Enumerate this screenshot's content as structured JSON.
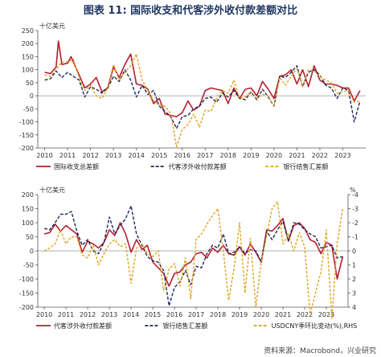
{
  "figure": {
    "title": "图表 11: 国际收支和代客涉外收付款差额对比",
    "source": "资料来源：Macrobond，兴业研究"
  },
  "colors": {
    "title": "#1f3864",
    "red": "#b41f2e",
    "navy": "#1f2a5a",
    "gold": "#e0a21a",
    "axis": "#555555",
    "zero": "#999999"
  },
  "chart_data": [
    {
      "type": "line",
      "ylabel": "十亿美元",
      "ylim": [
        -200,
        250
      ],
      "yticks": [
        250,
        200,
        150,
        100,
        50,
        0,
        -50,
        -100,
        -150,
        -200
      ],
      "xlim": [
        2009.7,
        2024.0
      ],
      "xticks": [
        "2010",
        "2011",
        "2012",
        "2013",
        "2014",
        "2015",
        "2016",
        "2017",
        "2018",
        "2019",
        "2020",
        "2021",
        "2022",
        "2023"
      ],
      "legend_position": "bottom",
      "series": [
        {
          "name": "国际收支总差额",
          "style": "solid",
          "color": "#b41f2e",
          "x": [
            2010.0,
            2010.25,
            2010.5,
            2010.6,
            2010.75,
            2011.0,
            2011.15,
            2011.3,
            2011.5,
            2011.75,
            2012.0,
            2012.25,
            2012.5,
            2012.75,
            2013.0,
            2013.25,
            2013.5,
            2013.75,
            2014.0,
            2014.25,
            2014.5,
            2014.75,
            2015.0,
            2015.25,
            2015.5,
            2015.75,
            2016.0,
            2016.25,
            2016.5,
            2016.75,
            2017.0,
            2017.25,
            2017.5,
            2017.75,
            2018.0,
            2018.25,
            2018.5,
            2018.75,
            2019.0,
            2019.25,
            2019.5,
            2019.75,
            2020.0,
            2020.25,
            2020.5,
            2020.75,
            2021.0,
            2021.25,
            2021.5,
            2021.75,
            2022.0,
            2022.25,
            2022.5,
            2022.75,
            2023.0,
            2023.25,
            2023.5,
            2023.75
          ],
          "y": [
            90,
            85,
            110,
            210,
            120,
            125,
            150,
            120,
            80,
            30,
            45,
            70,
            15,
            30,
            110,
            70,
            120,
            160,
            45,
            40,
            25,
            -30,
            -10,
            -70,
            -75,
            -80,
            -65,
            -20,
            -55,
            -40,
            20,
            30,
            25,
            20,
            -30,
            30,
            -10,
            25,
            30,
            0,
            55,
            25,
            -10,
            75,
            80,
            100,
            45,
            100,
            35,
            115,
            60,
            45,
            45,
            40,
            30,
            30,
            -20,
            20
          ]
        },
        {
          "name": "代客涉外收付款差额",
          "style": "dash",
          "color": "#1f2a5a",
          "x": [
            2010.0,
            2010.25,
            2010.5,
            2010.75,
            2011.0,
            2011.25,
            2011.5,
            2011.75,
            2012.0,
            2012.25,
            2012.5,
            2012.75,
            2013.0,
            2013.25,
            2013.5,
            2013.75,
            2014.0,
            2014.25,
            2014.5,
            2014.75,
            2015.0,
            2015.25,
            2015.5,
            2015.75,
            2016.0,
            2016.25,
            2016.5,
            2016.75,
            2017.0,
            2017.25,
            2017.5,
            2017.75,
            2018.0,
            2018.25,
            2018.5,
            2018.75,
            2019.0,
            2019.25,
            2019.5,
            2019.75,
            2020.0,
            2020.25,
            2020.5,
            2020.75,
            2021.0,
            2021.25,
            2021.5,
            2021.75,
            2022.0,
            2022.25,
            2022.5,
            2022.75,
            2023.0,
            2023.25,
            2023.5,
            2023.75
          ],
          "y": [
            60,
            65,
            95,
            70,
            90,
            75,
            60,
            -5,
            35,
            25,
            10,
            30,
            75,
            55,
            100,
            60,
            -5,
            40,
            5,
            20,
            -40,
            -60,
            -80,
            -125,
            -80,
            -75,
            -50,
            -40,
            -10,
            -5,
            -25,
            10,
            -5,
            20,
            -10,
            -15,
            15,
            -15,
            25,
            -5,
            -40,
            75,
            70,
            90,
            115,
            35,
            90,
            100,
            80,
            40,
            30,
            -10,
            30,
            20,
            -100,
            -20
          ]
        },
        {
          "name": "银行结售汇差额",
          "style": "dash",
          "color": "#e0a21a",
          "x": [
            2010.0,
            2010.25,
            2010.5,
            2010.75,
            2011.0,
            2011.25,
            2011.5,
            2011.75,
            2012.0,
            2012.25,
            2012.5,
            2012.75,
            2013.0,
            2013.25,
            2013.5,
            2013.75,
            2014.0,
            2014.25,
            2014.5,
            2014.75,
            2015.0,
            2015.25,
            2015.5,
            2015.75,
            2016.0,
            2016.25,
            2016.5,
            2016.75,
            2017.0,
            2017.25,
            2017.5,
            2017.75,
            2018.0,
            2018.25,
            2018.5,
            2018.75,
            2019.0,
            2019.25,
            2019.5,
            2019.75,
            2020.0,
            2020.25,
            2020.5,
            2020.75,
            2021.0,
            2021.25,
            2021.5,
            2021.75,
            2022.0,
            2022.25,
            2022.5,
            2022.75,
            2023.0,
            2023.25,
            2023.5,
            2023.75
          ],
          "y": [
            80,
            75,
            100,
            130,
            130,
            140,
            70,
            20,
            40,
            0,
            -10,
            30,
            120,
            60,
            90,
            115,
            160,
            60,
            20,
            -20,
            -35,
            -40,
            -70,
            -195,
            -130,
            -110,
            -70,
            -120,
            -55,
            -60,
            -10,
            20,
            10,
            60,
            -10,
            -5,
            15,
            -10,
            5,
            0,
            -40,
            70,
            40,
            75,
            105,
            35,
            100,
            95,
            75,
            60,
            50,
            10,
            15,
            20,
            -25,
            -20
          ]
        }
      ]
    },
    {
      "type": "line",
      "ylabel": "十亿美元",
      "ylim": [
        -200,
        200
      ],
      "yticks": [
        200,
        150,
        100,
        50,
        0,
        -50,
        -100,
        -150,
        -200
      ],
      "y2label": "%",
      "y2lim": [
        -4,
        4
      ],
      "y2inverted": true,
      "y2ticks": [
        -4,
        -3,
        -2,
        -1,
        0,
        1,
        2,
        3,
        4
      ],
      "xlim": [
        2009.7,
        2024.0
      ],
      "xticks": [
        "2010",
        "2011",
        "2012",
        "2013",
        "2014",
        "2015",
        "2016",
        "2017",
        "2018",
        "2019",
        "2020",
        "2021",
        "2022",
        "2023"
      ],
      "legend_position": "bottom",
      "series": [
        {
          "name": "代客涉外收付款差额",
          "style": "solid",
          "color": "#b41f2e",
          "axis": "left",
          "x": [
            2010.0,
            2010.25,
            2010.5,
            2010.75,
            2011.0,
            2011.25,
            2011.5,
            2011.75,
            2012.0,
            2012.25,
            2012.5,
            2012.75,
            2013.0,
            2013.25,
            2013.5,
            2013.75,
            2014.0,
            2014.25,
            2014.5,
            2014.75,
            2015.0,
            2015.25,
            2015.5,
            2015.75,
            2016.0,
            2016.25,
            2016.5,
            2016.75,
            2017.0,
            2017.25,
            2017.5,
            2017.75,
            2018.0,
            2018.25,
            2018.5,
            2018.75,
            2019.0,
            2019.25,
            2019.5,
            2019.75,
            2020.0,
            2020.25,
            2020.5,
            2020.75,
            2021.0,
            2021.25,
            2021.5,
            2021.75,
            2022.0,
            2022.25,
            2022.5,
            2022.75,
            2023.0,
            2023.25,
            2023.5,
            2023.75
          ],
          "y": [
            60,
            65,
            95,
            70,
            90,
            75,
            60,
            -5,
            35,
            25,
            10,
            30,
            75,
            55,
            100,
            60,
            -5,
            40,
            5,
            20,
            -40,
            -60,
            -80,
            -125,
            -80,
            -75,
            -50,
            -40,
            -10,
            -5,
            -25,
            10,
            -5,
            20,
            -10,
            -15,
            15,
            -15,
            25,
            -5,
            -40,
            75,
            70,
            90,
            115,
            35,
            90,
            100,
            80,
            40,
            30,
            -10,
            30,
            20,
            -100,
            -20
          ]
        },
        {
          "name": "银行结售汇差额",
          "style": "dash",
          "color": "#1f2a5a",
          "axis": "left",
          "x": [
            2010.0,
            2010.25,
            2010.5,
            2010.75,
            2011.0,
            2011.25,
            2011.5,
            2011.75,
            2012.0,
            2012.25,
            2012.5,
            2012.75,
            2013.0,
            2013.25,
            2013.5,
            2013.75,
            2014.0,
            2014.25,
            2014.5,
            2014.75,
            2015.0,
            2015.25,
            2015.5,
            2015.75,
            2016.0,
            2016.25,
            2016.5,
            2016.75,
            2017.0,
            2017.25,
            2017.5,
            2017.75,
            2018.0,
            2018.25,
            2018.5,
            2018.75,
            2019.0,
            2019.25,
            2019.5,
            2019.75,
            2020.0,
            2020.25,
            2020.5,
            2020.75,
            2021.0,
            2021.25,
            2021.5,
            2021.75,
            2022.0,
            2022.25,
            2022.5,
            2022.75,
            2023.0,
            2023.25,
            2023.5,
            2023.75
          ],
          "y": [
            80,
            75,
            100,
            130,
            130,
            140,
            70,
            20,
            40,
            0,
            -10,
            30,
            120,
            60,
            90,
            115,
            160,
            60,
            20,
            -20,
            -35,
            -40,
            -70,
            -195,
            -130,
            -110,
            -70,
            -120,
            -55,
            -60,
            -10,
            20,
            10,
            60,
            -10,
            -5,
            15,
            -10,
            5,
            0,
            -40,
            70,
            40,
            75,
            105,
            35,
            100,
            95,
            75,
            60,
            50,
            10,
            15,
            20,
            -25,
            -20
          ]
        },
        {
          "name": "USDCNY季环比变动(%),RHS",
          "style": "dash",
          "color": "#e0a21a",
          "axis": "right",
          "x": [
            2010.0,
            2010.25,
            2010.5,
            2010.75,
            2011.0,
            2011.25,
            2011.5,
            2011.75,
            2012.0,
            2012.25,
            2012.5,
            2012.75,
            2013.0,
            2013.25,
            2013.5,
            2013.75,
            2014.0,
            2014.25,
            2014.5,
            2014.75,
            2015.0,
            2015.25,
            2015.5,
            2015.75,
            2016.0,
            2016.25,
            2016.5,
            2016.75,
            2017.0,
            2017.25,
            2017.5,
            2017.75,
            2018.0,
            2018.25,
            2018.5,
            2018.75,
            2019.0,
            2019.25,
            2019.5,
            2019.75,
            2020.0,
            2020.25,
            2020.5,
            2020.75,
            2021.0,
            2021.25,
            2021.5,
            2021.75,
            2022.0,
            2022.25,
            2022.5,
            2022.75,
            2023.0,
            2023.25,
            2023.5,
            2023.75
          ],
          "y": [
            0,
            -0.2,
            -0.5,
            -1.5,
            -0.5,
            -1.0,
            -1.0,
            0.3,
            0.5,
            -0.4,
            1.0,
            0.2,
            -0.5,
            -0.8,
            -0.3,
            -0.5,
            2.3,
            -0.2,
            -0.5,
            0.2,
            0.4,
            0.0,
            2.8,
            1.3,
            0.9,
            2.5,
            0.5,
            3.4,
            -0.8,
            -1.2,
            -1.9,
            -2.5,
            -3.0,
            0.0,
            3.5,
            1.2,
            -2.0,
            3.0,
            -0.9,
            4.0,
            0.8,
            -1.1,
            -3.0,
            -3.5,
            -0.5,
            -1.2,
            0.0,
            -1.3,
            -0.3,
            4.5,
            3.0,
            1.5,
            -1.5,
            4.8,
            -0.5,
            -3.0
          ]
        }
      ]
    }
  ]
}
